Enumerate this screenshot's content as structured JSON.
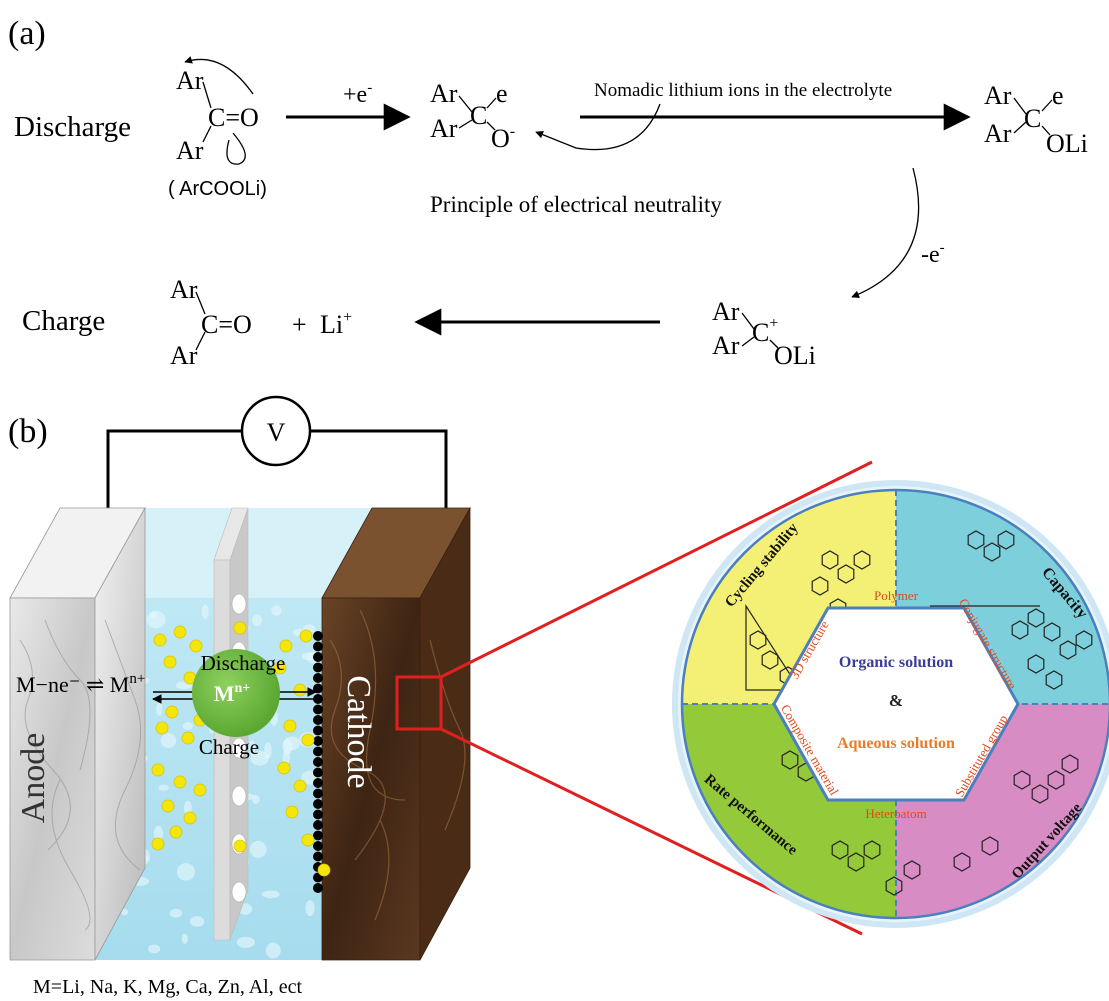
{
  "panel_a": {
    "label": "(a)",
    "discharge_label": "Discharge",
    "charge_label": "Charge",
    "ar": "Ar",
    "carbonyl": "C=O",
    "c": "C",
    "e": "e",
    "o_minus": "O",
    "minus_sup": "-",
    "oli": "OLi",
    "plus_e_base": "+e",
    "minus_e_base": "-e",
    "electron_sup": "-",
    "compound_name": "( ArCOOLi)",
    "nomadic_text": "Nomadic lithium ions in the electrolyte",
    "neutrality_text": "Principle of electrical neutrality",
    "plus_sign": "+",
    "li_base": "Li",
    "li_sup": "+",
    "cation_sup": "+"
  },
  "panel_b": {
    "label": "(b)",
    "voltmeter": "V",
    "anode": "Anode",
    "cathode": "Cathode",
    "discharge": "Discharge",
    "charge": "Charge",
    "ion": "M",
    "ion_sup": "n+",
    "equation": "M−ne⁻ ⇌ M",
    "equation_sup": "n+",
    "metals": "M=Li, Na, K, Mg, Ca, Zn, Al, ect"
  },
  "wheel": {
    "center_line1": "Organic solution",
    "center_amp": "&",
    "center_line2": "Aqueous solution",
    "segments": {
      "cycling": "Cycling stability",
      "capacity": "Capacity",
      "rate": "Rate performance",
      "voltage": "Output voltage"
    },
    "inner_labels": {
      "polymer": "Polymer",
      "structure3d": "3D structure",
      "conjugate": "Conjugate structure",
      "composite": "Composite material",
      "substituted": "Substituted group",
      "heteroatom": "Heteroatom"
    },
    "colors": {
      "cycling": "#f4f075",
      "capacity": "#7ecfdc",
      "rate": "#94c93a",
      "voltage": "#d88cc4",
      "ring_border": "#4a7fc0"
    }
  }
}
